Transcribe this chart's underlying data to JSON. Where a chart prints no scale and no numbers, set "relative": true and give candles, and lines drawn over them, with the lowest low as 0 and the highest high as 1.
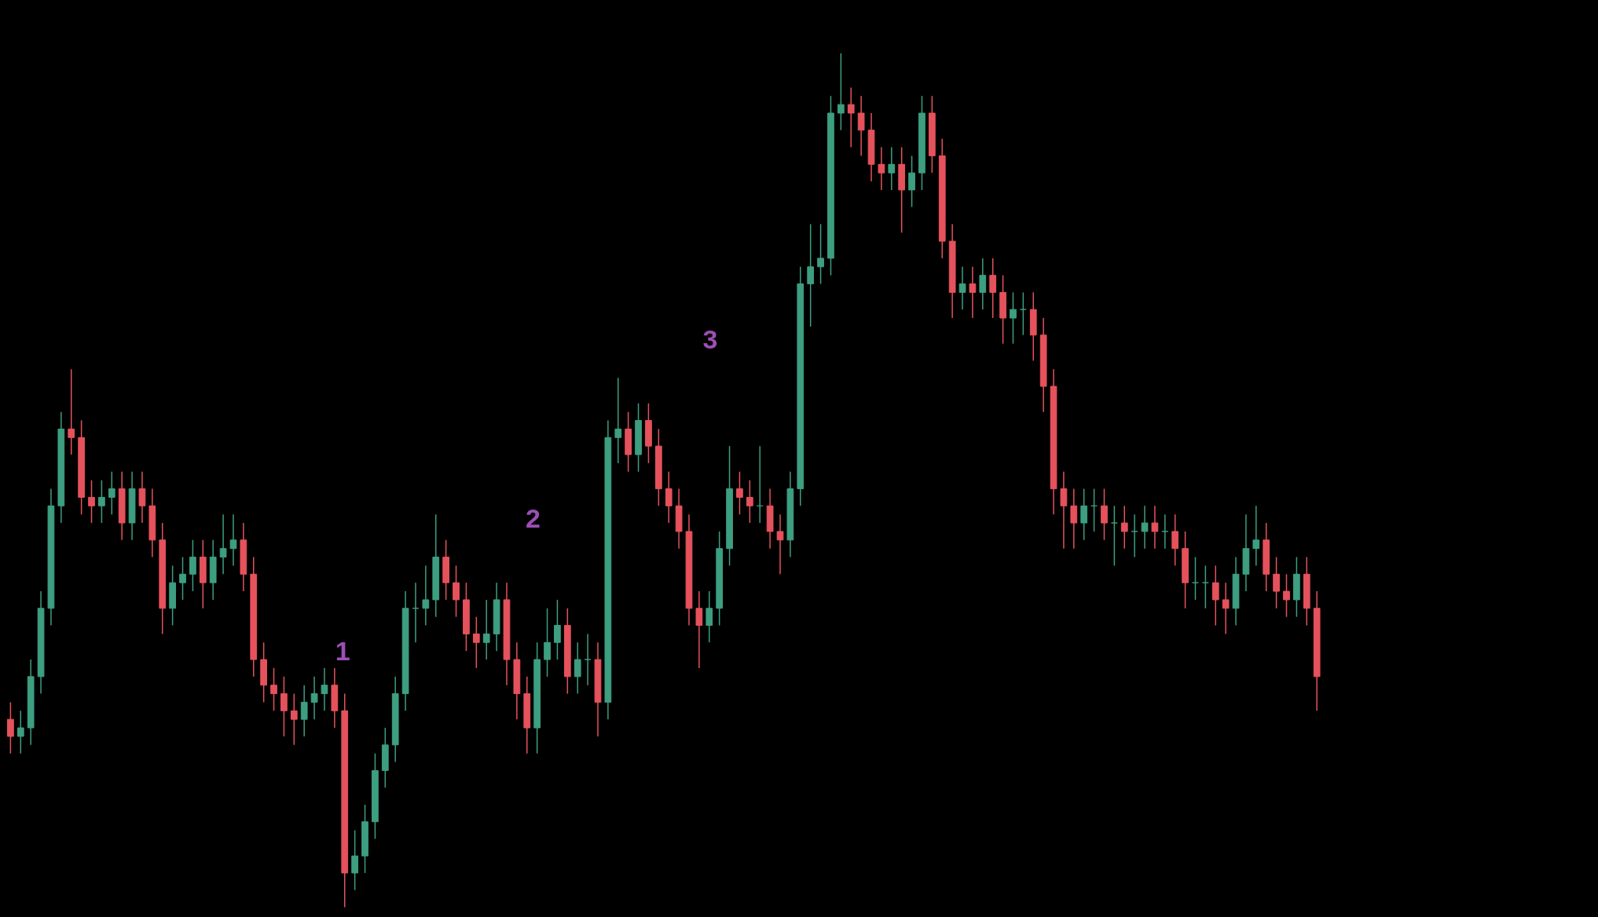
{
  "chart_data": {
    "type": "candlestick",
    "relative": true,
    "categories": [
      null,
      null,
      null,
      null,
      null,
      null,
      null,
      null,
      null,
      null,
      null,
      null,
      null,
      null,
      null,
      null,
      null,
      null,
      null,
      null,
      null,
      null,
      null,
      null,
      null,
      null,
      null,
      null,
      null,
      null,
      null,
      null,
      null,
      null,
      null,
      null,
      null,
      null,
      null,
      null,
      null,
      null,
      null,
      null,
      null,
      null,
      null,
      null,
      null,
      null,
      null,
      null,
      null,
      null,
      null,
      null,
      null,
      null,
      null,
      null,
      null,
      null,
      null,
      null,
      null,
      null,
      null,
      null,
      null,
      null,
      null,
      null,
      null,
      null,
      null,
      null,
      null,
      null,
      null,
      null,
      null,
      null,
      null,
      null,
      null,
      null,
      null,
      null,
      null,
      null,
      null,
      null,
      null,
      null,
      null,
      null,
      null,
      null,
      null,
      null,
      null,
      null,
      null,
      null,
      null,
      null,
      null,
      null,
      null,
      null,
      null,
      null,
      null,
      null,
      null,
      null,
      null,
      null,
      null,
      null,
      null,
      null,
      null,
      null,
      null,
      null,
      null,
      null,
      null,
      null
    ],
    "colors": [
      "#e5525c",
      "#3d9e80",
      "#3d9e80",
      "#3d9e80",
      "#3d9e80",
      "#3d9e80",
      "#e5525c",
      "#e5525c",
      "#e5525c",
      "#3d9e80",
      "#3d9e80",
      "#e5525c",
      "#3d9e80",
      "#e5525c",
      "#e5525c",
      "#e5525c",
      "#3d9e80",
      "#3d9e80",
      "#3d9e80",
      "#e5525c",
      "#3d9e80",
      "#3d9e80",
      "#3d9e80",
      "#e5525c",
      "#e5525c",
      "#e5525c",
      "#e5525c",
      "#e5525c",
      "#e5525c",
      "#3d9e80",
      "#3d9e80",
      "#3d9e80",
      "#e5525c",
      "#e5525c",
      "#3d9e80",
      "#3d9e80",
      "#3d9e80",
      "#3d9e80",
      "#3d9e80",
      "#3d9e80",
      "#3d9e80",
      "#3d9e80",
      "#3d9e80",
      "#e5525c",
      "#e5525c",
      "#e5525c",
      "#e5525c",
      "#3d9e80",
      "#3d9e80",
      "#e5525c",
      "#e5525c",
      "#e5525c",
      "#3d9e80",
      "#3d9e80",
      "#3d9e80",
      "#e5525c",
      "#3d9e80",
      "#3d9e80",
      "#e5525c",
      "#3d9e80",
      "#3d9e80",
      "#e5525c",
      "#3d9e80",
      "#e5525c",
      "#e5525c",
      "#e5525c",
      "#e5525c",
      "#e5525c",
      "#e5525c",
      "#3d9e80",
      "#3d9e80",
      "#3d9e80",
      "#e5525c",
      "#e5525c",
      "#3d9e80",
      "#e5525c",
      "#e5525c",
      "#3d9e80",
      "#3d9e80",
      "#3d9e80",
      "#3d9e80",
      "#3d9e80",
      "#3d9e80",
      "#e5525c",
      "#e5525c",
      "#e5525c",
      "#e5525c",
      "#3d9e80",
      "#e5525c",
      "#3d9e80",
      "#3d9e80",
      "#e5525c",
      "#e5525c",
      "#e5525c",
      "#3d9e80",
      "#e5525c",
      "#3d9e80",
      "#e5525c",
      "#e5525c",
      "#3d9e80",
      "#3d9e80",
      "#e5525c",
      "#e5525c",
      "#e5525c",
      "#e5525c",
      "#e5525c",
      "#3d9e80",
      "#3d9e80",
      "#e5525c",
      "#3d9e80",
      "#e5525c",
      "#3d9e80",
      "#3d9e80",
      "#e5525c",
      "#3d9e80",
      "#e5525c",
      "#e5525c",
      "#3d9e80",
      "#3d9e80",
      "#e5525c",
      "#e5525c",
      "#3d9e80",
      "#3d9e80",
      "#3d9e80",
      "#e5525c",
      "#e5525c",
      "#e5525c",
      "#3d9e80",
      "#e5525c",
      "#e5525c"
    ],
    "annotations": [
      "1",
      "2",
      "3"
    ],
    "ohlc": [
      [
        0.22,
        0.24,
        0.18,
        0.2
      ],
      [
        0.2,
        0.23,
        0.18,
        0.21
      ],
      [
        0.21,
        0.29,
        0.19,
        0.27
      ],
      [
        0.27,
        0.37,
        0.25,
        0.35
      ],
      [
        0.35,
        0.49,
        0.33,
        0.47
      ],
      [
        0.47,
        0.58,
        0.45,
        0.56
      ],
      [
        0.56,
        0.63,
        0.53,
        0.55
      ],
      [
        0.55,
        0.57,
        0.46,
        0.48
      ],
      [
        0.48,
        0.5,
        0.45,
        0.47
      ],
      [
        0.47,
        0.5,
        0.45,
        0.48
      ],
      [
        0.48,
        0.51,
        0.46,
        0.49
      ],
      [
        0.49,
        0.51,
        0.43,
        0.45
      ],
      [
        0.45,
        0.51,
        0.43,
        0.49
      ],
      [
        0.49,
        0.51,
        0.45,
        0.47
      ],
      [
        0.47,
        0.49,
        0.41,
        0.43
      ],
      [
        0.43,
        0.45,
        0.32,
        0.35
      ],
      [
        0.35,
        0.4,
        0.33,
        0.38
      ],
      [
        0.38,
        0.41,
        0.36,
        0.39
      ],
      [
        0.39,
        0.43,
        0.37,
        0.41
      ],
      [
        0.41,
        0.43,
        0.35,
        0.38
      ],
      [
        0.38,
        0.43,
        0.36,
        0.41
      ],
      [
        0.41,
        0.46,
        0.39,
        0.42
      ],
      [
        0.42,
        0.46,
        0.4,
        0.43
      ],
      [
        0.43,
        0.45,
        0.37,
        0.39
      ],
      [
        0.39,
        0.41,
        0.27,
        0.29
      ],
      [
        0.29,
        0.31,
        0.24,
        0.26
      ],
      [
        0.26,
        0.28,
        0.23,
        0.25
      ],
      [
        0.25,
        0.27,
        0.2,
        0.23
      ],
      [
        0.23,
        0.25,
        0.19,
        0.22
      ],
      [
        0.22,
        0.26,
        0.2,
        0.24
      ],
      [
        0.24,
        0.27,
        0.22,
        0.25
      ],
      [
        0.25,
        0.28,
        0.23,
        0.26
      ],
      [
        0.26,
        0.28,
        0.21,
        0.23
      ],
      [
        0.23,
        0.25,
        0.0,
        0.04
      ],
      [
        0.04,
        0.09,
        0.02,
        0.06
      ],
      [
        0.06,
        0.12,
        0.04,
        0.1
      ],
      [
        0.1,
        0.18,
        0.08,
        0.16
      ],
      [
        0.16,
        0.21,
        0.14,
        0.19
      ],
      [
        0.19,
        0.27,
        0.17,
        0.25
      ],
      [
        0.25,
        0.37,
        0.23,
        0.35
      ],
      [
        0.35,
        0.38,
        0.31,
        0.35
      ],
      [
        0.35,
        0.4,
        0.33,
        0.36
      ],
      [
        0.36,
        0.46,
        0.34,
        0.41
      ],
      [
        0.41,
        0.43,
        0.36,
        0.38
      ],
      [
        0.38,
        0.4,
        0.34,
        0.36
      ],
      [
        0.36,
        0.38,
        0.3,
        0.32
      ],
      [
        0.32,
        0.34,
        0.28,
        0.31
      ],
      [
        0.31,
        0.36,
        0.29,
        0.32
      ],
      [
        0.32,
        0.38,
        0.3,
        0.36
      ],
      [
        0.36,
        0.38,
        0.26,
        0.29
      ],
      [
        0.29,
        0.31,
        0.22,
        0.25
      ],
      [
        0.25,
        0.27,
        0.18,
        0.21
      ],
      [
        0.21,
        0.31,
        0.18,
        0.29
      ],
      [
        0.29,
        0.35,
        0.27,
        0.31
      ],
      [
        0.31,
        0.36,
        0.29,
        0.33
      ],
      [
        0.33,
        0.35,
        0.25,
        0.27
      ],
      [
        0.27,
        0.31,
        0.25,
        0.29
      ],
      [
        0.29,
        0.32,
        0.26,
        0.29
      ],
      [
        0.29,
        0.31,
        0.2,
        0.24
      ],
      [
        0.24,
        0.57,
        0.22,
        0.55
      ],
      [
        0.55,
        0.62,
        0.52,
        0.56
      ],
      [
        0.56,
        0.58,
        0.51,
        0.53
      ],
      [
        0.53,
        0.59,
        0.51,
        0.57
      ],
      [
        0.57,
        0.59,
        0.52,
        0.54
      ],
      [
        0.54,
        0.56,
        0.47,
        0.49
      ],
      [
        0.49,
        0.51,
        0.45,
        0.47
      ],
      [
        0.47,
        0.49,
        0.42,
        0.44
      ],
      [
        0.44,
        0.46,
        0.33,
        0.35
      ],
      [
        0.35,
        0.37,
        0.28,
        0.33
      ],
      [
        0.33,
        0.37,
        0.31,
        0.35
      ],
      [
        0.35,
        0.44,
        0.33,
        0.42
      ],
      [
        0.42,
        0.54,
        0.4,
        0.49
      ],
      [
        0.49,
        0.51,
        0.46,
        0.48
      ],
      [
        0.48,
        0.5,
        0.45,
        0.47
      ],
      [
        0.47,
        0.54,
        0.45,
        0.47
      ],
      [
        0.47,
        0.49,
        0.42,
        0.44
      ],
      [
        0.44,
        0.46,
        0.39,
        0.43
      ],
      [
        0.43,
        0.51,
        0.41,
        0.49
      ],
      [
        0.49,
        0.75,
        0.47,
        0.73
      ],
      [
        0.73,
        0.8,
        0.68,
        0.75
      ],
      [
        0.75,
        0.8,
        0.73,
        0.76
      ],
      [
        0.76,
        0.95,
        0.74,
        0.93
      ],
      [
        0.93,
        1.0,
        0.91,
        0.94
      ],
      [
        0.94,
        0.96,
        0.89,
        0.93
      ],
      [
        0.93,
        0.95,
        0.88,
        0.91
      ],
      [
        0.91,
        0.93,
        0.85,
        0.87
      ],
      [
        0.87,
        0.89,
        0.84,
        0.86
      ],
      [
        0.86,
        0.89,
        0.84,
        0.87
      ],
      [
        0.87,
        0.89,
        0.79,
        0.84
      ],
      [
        0.84,
        0.88,
        0.82,
        0.86
      ],
      [
        0.86,
        0.95,
        0.84,
        0.93
      ],
      [
        0.93,
        0.95,
        0.86,
        0.88
      ],
      [
        0.88,
        0.9,
        0.76,
        0.78
      ],
      [
        0.78,
        0.8,
        0.69,
        0.72
      ],
      [
        0.72,
        0.75,
        0.7,
        0.73
      ],
      [
        0.73,
        0.75,
        0.69,
        0.72
      ],
      [
        0.72,
        0.76,
        0.7,
        0.74
      ],
      [
        0.74,
        0.76,
        0.69,
        0.72
      ],
      [
        0.72,
        0.74,
        0.66,
        0.69
      ],
      [
        0.69,
        0.72,
        0.66,
        0.7
      ],
      [
        0.7,
        0.72,
        0.67,
        0.7
      ],
      [
        0.7,
        0.72,
        0.64,
        0.67
      ],
      [
        0.67,
        0.69,
        0.58,
        0.61
      ],
      [
        0.61,
        0.63,
        0.46,
        0.49
      ],
      [
        0.49,
        0.51,
        0.42,
        0.47
      ],
      [
        0.47,
        0.49,
        0.42,
        0.45
      ],
      [
        0.45,
        0.49,
        0.43,
        0.47
      ],
      [
        0.47,
        0.49,
        0.44,
        0.47
      ],
      [
        0.47,
        0.49,
        0.43,
        0.45
      ],
      [
        0.45,
        0.47,
        0.4,
        0.45
      ],
      [
        0.45,
        0.47,
        0.42,
        0.44
      ],
      [
        0.44,
        0.46,
        0.41,
        0.44
      ],
      [
        0.44,
        0.47,
        0.42,
        0.45
      ],
      [
        0.45,
        0.47,
        0.42,
        0.44
      ],
      [
        0.44,
        0.46,
        0.42,
        0.44
      ],
      [
        0.44,
        0.46,
        0.4,
        0.42
      ],
      [
        0.42,
        0.44,
        0.35,
        0.38
      ],
      [
        0.38,
        0.41,
        0.36,
        0.38
      ],
      [
        0.38,
        0.4,
        0.35,
        0.38
      ],
      [
        0.38,
        0.4,
        0.33,
        0.36
      ],
      [
        0.36,
        0.38,
        0.32,
        0.35
      ],
      [
        0.35,
        0.41,
        0.33,
        0.39
      ],
      [
        0.39,
        0.46,
        0.37,
        0.42
      ],
      [
        0.42,
        0.47,
        0.4,
        0.43
      ],
      [
        0.43,
        0.45,
        0.37,
        0.39
      ],
      [
        0.39,
        0.41,
        0.35,
        0.37
      ],
      [
        0.37,
        0.39,
        0.34,
        0.36
      ],
      [
        0.36,
        0.41,
        0.34,
        0.39
      ],
      [
        0.39,
        0.41,
        0.33,
        0.35
      ],
      [
        0.35,
        0.37,
        0.23,
        0.27
      ]
    ]
  }
}
